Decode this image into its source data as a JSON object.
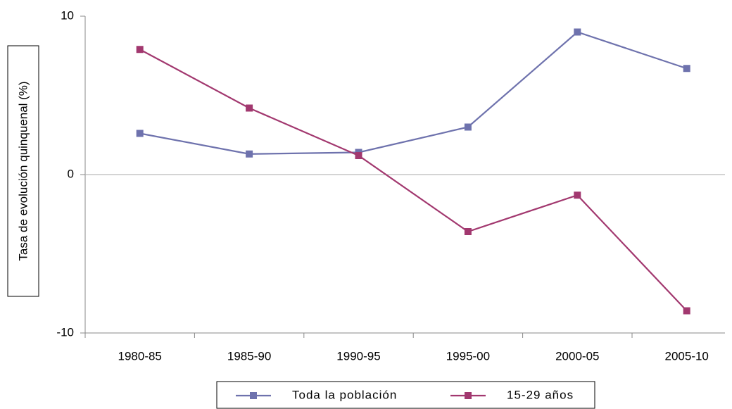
{
  "chart_data": {
    "type": "line",
    "y_label": "Tasa de evolución quinquenal (%)",
    "categories": [
      "1980-85",
      "1985-90",
      "1990-95",
      "1995-00",
      "2000-05",
      "2005-10"
    ],
    "series": [
      {
        "name": "Toda la población",
        "color": "#6e72ad",
        "values": [
          2.6,
          1.3,
          1.4,
          3.0,
          9.0,
          6.7
        ]
      },
      {
        "name": "15-29 años",
        "color": "#a2386f",
        "values": [
          7.9,
          4.2,
          1.2,
          -3.6,
          -1.3,
          -8.6
        ]
      }
    ],
    "ylim": [
      -10,
      10
    ],
    "yticks": [
      -10,
      0,
      10
    ]
  }
}
